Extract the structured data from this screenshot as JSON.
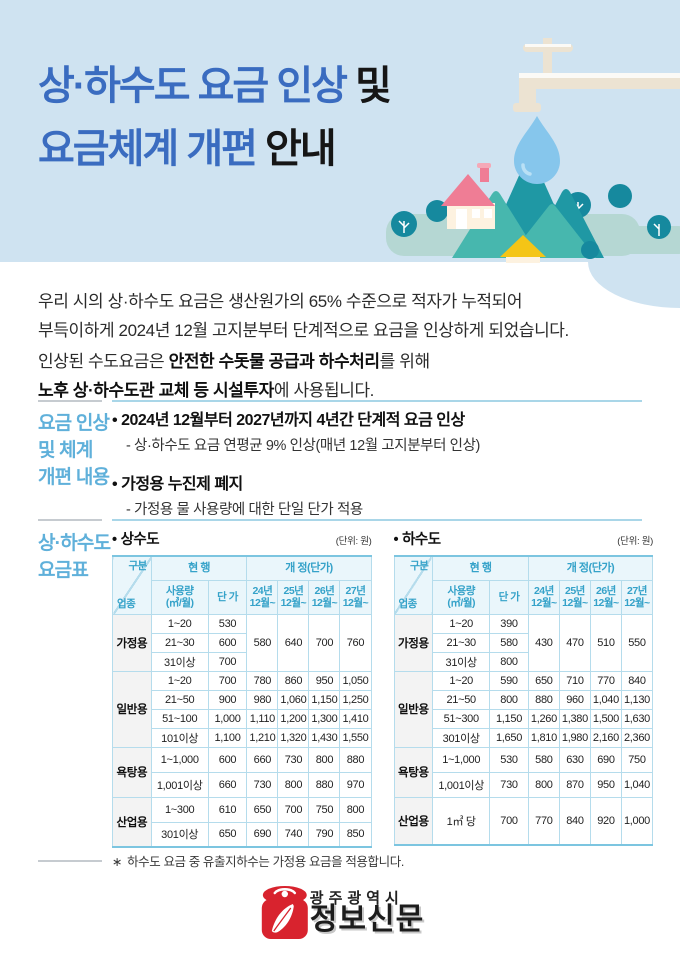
{
  "glyphs": {
    "bullet": "•",
    "footnote_mark": "∗"
  },
  "colors": {
    "hero_bg": "#cfe3f1",
    "title_accent": "#3a6cc0",
    "side_label_blue": "#5fb0da",
    "table_accent": "#35a2c9",
    "table_border": "#b5dcec",
    "logo_red": "#d8232e"
  },
  "hero": {
    "title": {
      "l1_accent": "상·하수도 요금 인상",
      "l1_rest": " 및",
      "l2_accent": "요금체계 개편",
      "l2_rest": " 안내"
    }
  },
  "intro": {
    "p1_line1": "우리 시의 상·하수도 요금은 생산원가의 65% 수준으로 적자가 누적되어",
    "p1_line2": "부득이하게 2024년 12월 고지분부터 단계적으로 요금을 인상하게 되었습니다.",
    "p2_seg1": "인상된 수도요금은 ",
    "p2_bold1": "안전한 수돗물 공급과 하수처리",
    "p2_seg2": "를 위해",
    "p2_bold2": "노후 상·하수도관 교체 등 시설투자",
    "p2_seg3": "에 사용됩니다."
  },
  "sections": {
    "reform": {
      "label": "요금 인상\n및 체계\n개편 내용",
      "items": [
        {
          "title": "2024년 12월부터 2027년까지 4년간 단계적 요금 인상",
          "sub": "- 상·하수도 요금 연평균 9% 인상(매년 12월 고지분부터 인상)"
        },
        {
          "title": "가정용 누진제 폐지",
          "sub": "- 가정용 물 사용량에 대한 단일 단가 적용"
        }
      ]
    },
    "fees": {
      "label": "상·하수도\n요금표",
      "unit_note": "(단위: 원)",
      "header": {
        "corner_top": "구분",
        "corner_bottom": "업종",
        "current": "현 행",
        "revised": "개 정(단가)",
        "usage": "사용량\n(㎥/월)",
        "price": "단 가",
        "rev_cols": [
          "24년\n12월~",
          "25년\n12월~",
          "26년\n12월~",
          "27년\n12월~"
        ]
      },
      "tables": [
        {
          "title": "상수도",
          "groups": [
            {
              "label": "가정용",
              "merged_rev": [
                "580",
                "640",
                "700",
                "760"
              ],
              "rows": [
                [
                  "1~20",
                  "530"
                ],
                [
                  "21~30",
                  "600"
                ],
                [
                  "31이상",
                  "700"
                ]
              ]
            },
            {
              "label": "일반용",
              "rows": [
                [
                  "1~20",
                  "700",
                  "780",
                  "860",
                  "950",
                  "1,050"
                ],
                [
                  "21~50",
                  "900",
                  "980",
                  "1,060",
                  "1,150",
                  "1,250"
                ],
                [
                  "51~100",
                  "1,000",
                  "1,110",
                  "1,200",
                  "1,300",
                  "1,410"
                ],
                [
                  "101이상",
                  "1,100",
                  "1,210",
                  "1,320",
                  "1,430",
                  "1,550"
                ]
              ]
            },
            {
              "label": "욕탕용",
              "rows": [
                [
                  "1~1,000",
                  "600",
                  "660",
                  "730",
                  "800",
                  "880"
                ],
                [
                  "1,001이상",
                  "660",
                  "730",
                  "800",
                  "880",
                  "970"
                ]
              ]
            },
            {
              "label": "산업용",
              "rows": [
                [
                  "1~300",
                  "610",
                  "650",
                  "700",
                  "750",
                  "800"
                ],
                [
                  "301이상",
                  "650",
                  "690",
                  "740",
                  "790",
                  "850"
                ]
              ]
            }
          ]
        },
        {
          "title": "하수도",
          "groups": [
            {
              "label": "가정용",
              "merged_rev": [
                "430",
                "470",
                "510",
                "550"
              ],
              "rows": [
                [
                  "1~20",
                  "390"
                ],
                [
                  "21~30",
                  "580"
                ],
                [
                  "31이상",
                  "800"
                ]
              ]
            },
            {
              "label": "일반용",
              "rows": [
                [
                  "1~20",
                  "590",
                  "650",
                  "710",
                  "770",
                  "840"
                ],
                [
                  "21~50",
                  "800",
                  "880",
                  "960",
                  "1,040",
                  "1,130"
                ],
                [
                  "51~300",
                  "1,150",
                  "1,260",
                  "1,380",
                  "1,500",
                  "1,630"
                ],
                [
                  "301이상",
                  "1,650",
                  "1,810",
                  "1,980",
                  "2,160",
                  "2,360"
                ]
              ]
            },
            {
              "label": "욕탕용",
              "rows": [
                [
                  "1~1,000",
                  "530",
                  "580",
                  "630",
                  "690",
                  "750"
                ],
                [
                  "1,001이상",
                  "730",
                  "800",
                  "870",
                  "950",
                  "1,040"
                ]
              ]
            },
            {
              "label": "산업용",
              "rows": [
                [
                  "1㎥ 당",
                  "700",
                  "770",
                  "840",
                  "920",
                  "1,000"
                ]
              ]
            }
          ]
        }
      ],
      "footnote": "하수도 요금 중 유출지하수는 가정용 요금을 적용합니다."
    }
  },
  "footer": {
    "org": "광주광역시",
    "brand": "정보신문"
  }
}
